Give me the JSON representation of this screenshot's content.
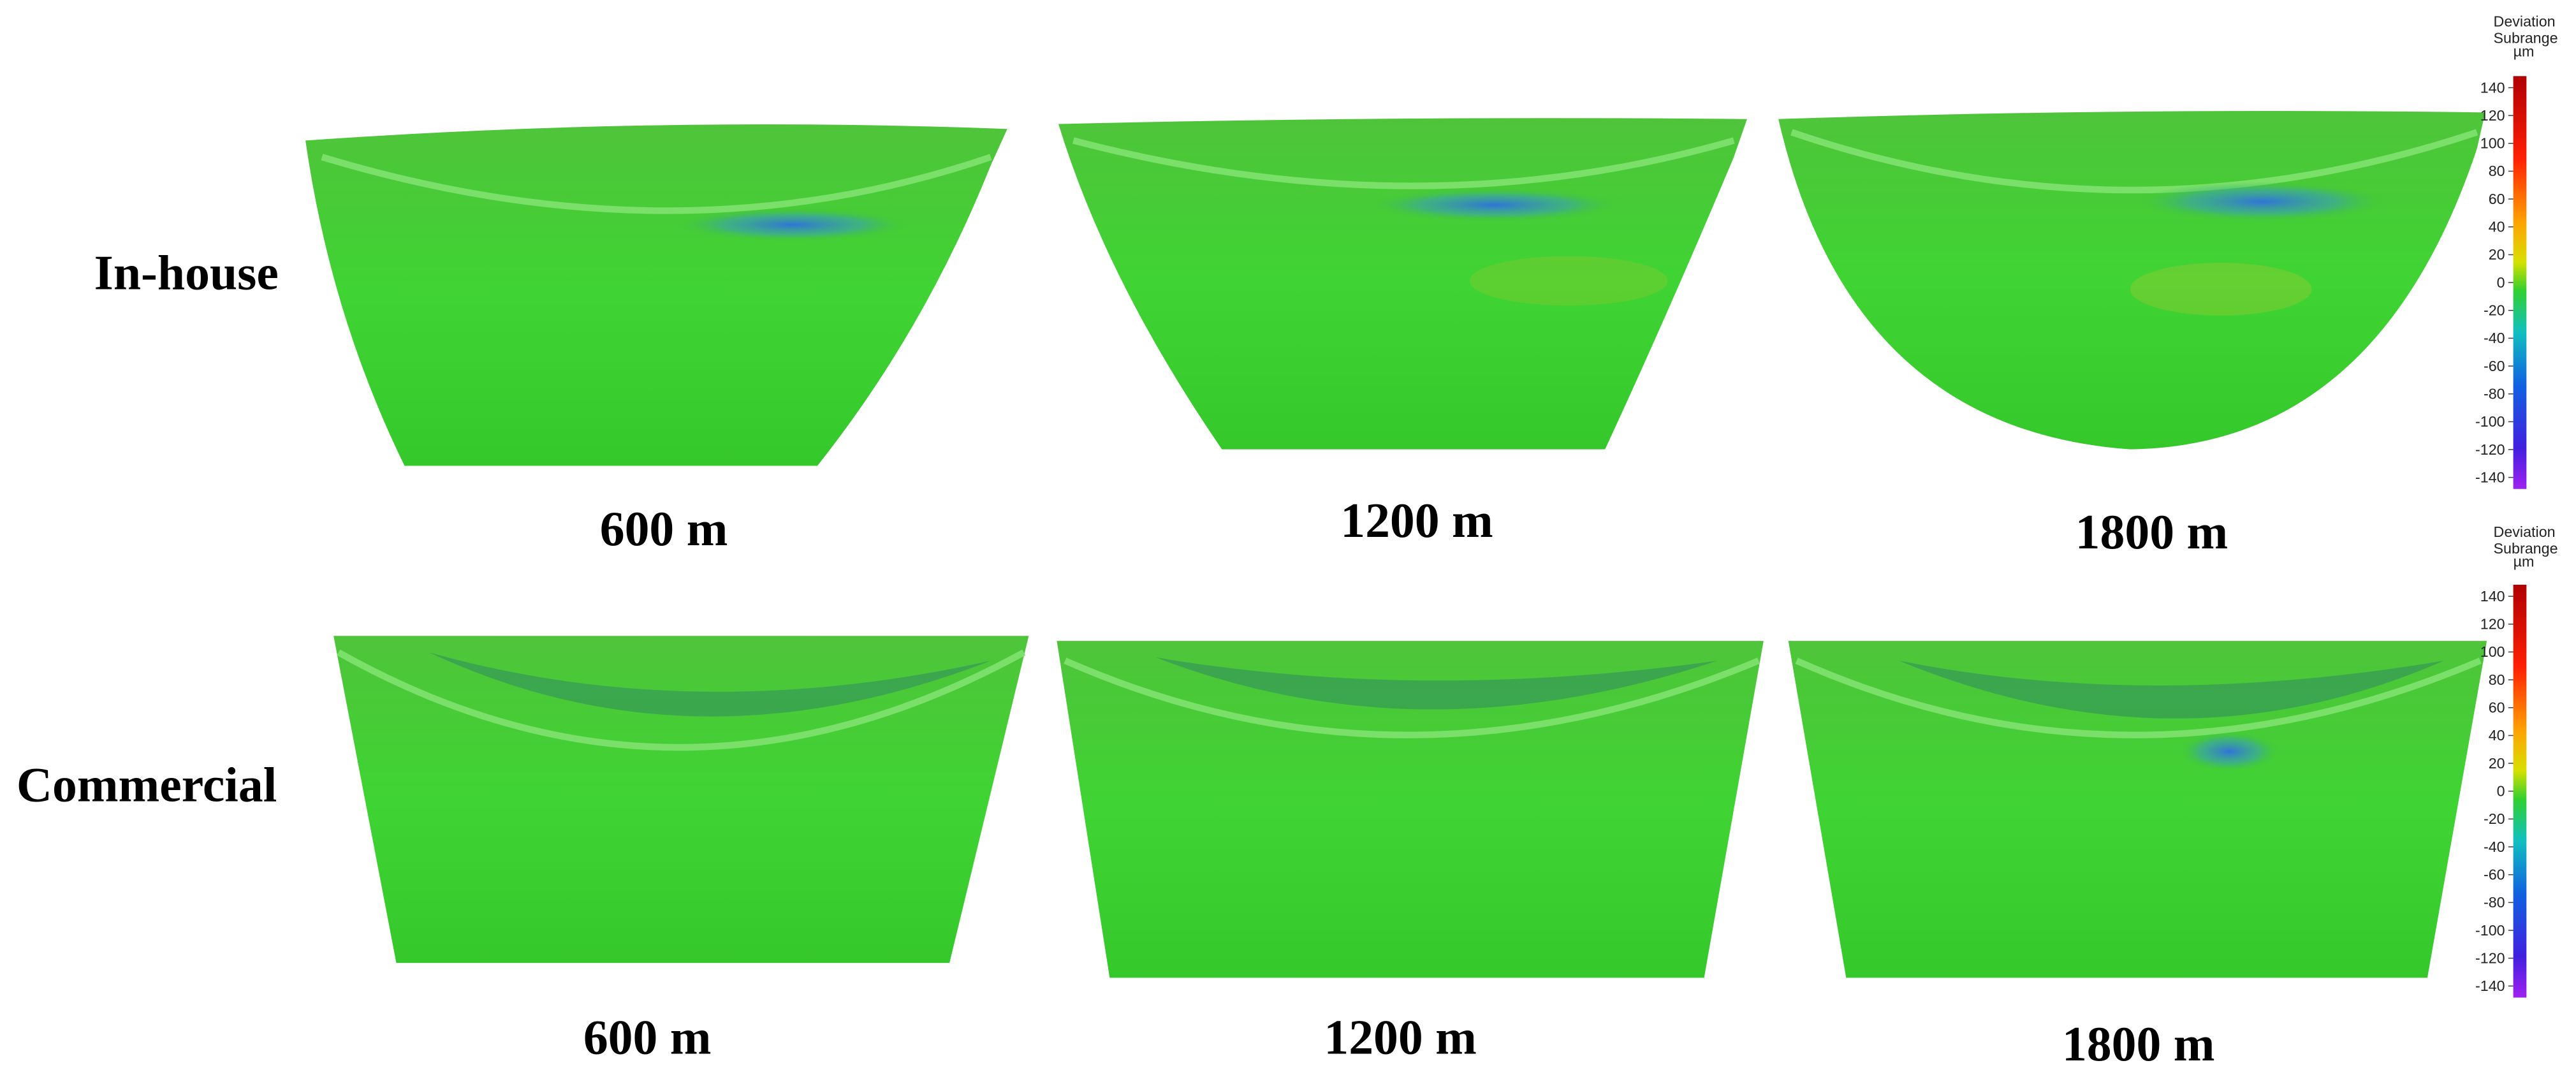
{
  "rows": [
    {
      "label": "In-house",
      "columns": [
        "600 m",
        "1200 m",
        "1800 m"
      ]
    },
    {
      "label": "Commercial",
      "columns": [
        "600 m",
        "1200 m",
        "1800 m"
      ]
    }
  ],
  "colorbars": [
    {
      "title": [
        "Deviation",
        "Subrange"
      ],
      "unit": "µm",
      "ticks": [
        140,
        120,
        100,
        80,
        60,
        40,
        20,
        0,
        -20,
        -40,
        -60,
        -80,
        -100,
        -120,
        -140
      ]
    },
    {
      "title": [
        "Deviation",
        "Subrange"
      ],
      "unit": "µm",
      "ticks": [
        140,
        120,
        100,
        80,
        60,
        40,
        20,
        0,
        -20,
        -40,
        -60,
        -80,
        -100,
        -120,
        -140
      ]
    }
  ]
}
